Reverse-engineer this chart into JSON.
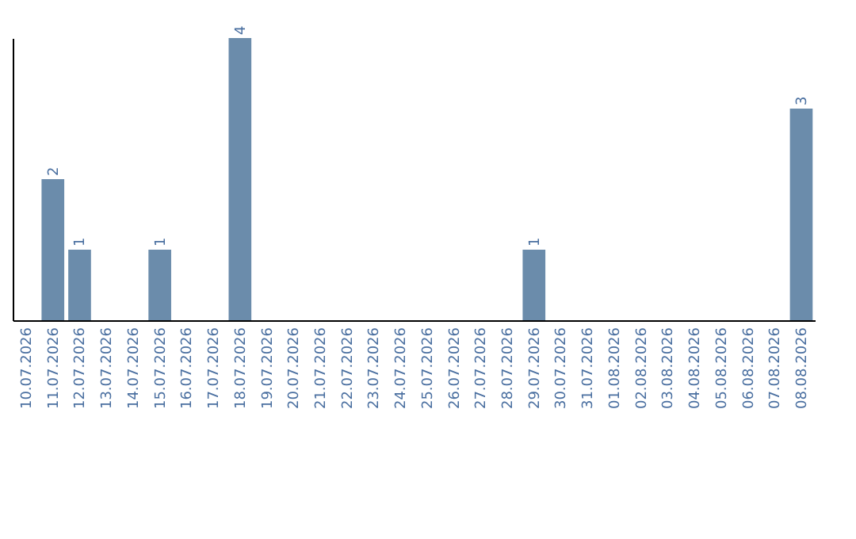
{
  "chart_data": {
    "type": "bar",
    "categories": [
      "10.07.2026",
      "11.07.2026",
      "12.07.2026",
      "13.07.2026",
      "14.07.2026",
      "15.07.2026",
      "16.07.2026",
      "17.07.2026",
      "18.07.2026",
      "19.07.2026",
      "20.07.2026",
      "21.07.2026",
      "22.07.2026",
      "23.07.2026",
      "24.07.2026",
      "25.07.2026",
      "26.07.2026",
      "27.07.2026",
      "28.07.2026",
      "29.07.2026",
      "30.07.2026",
      "31.07.2026",
      "01.08.2026",
      "02.08.2026",
      "03.08.2026",
      "04.08.2026",
      "05.08.2026",
      "06.08.2026",
      "07.08.2026",
      "08.08.2026"
    ],
    "values": [
      0,
      2,
      1,
      0,
      0,
      1,
      0,
      0,
      4,
      0,
      0,
      0,
      0,
      0,
      0,
      0,
      0,
      0,
      0,
      1,
      0,
      0,
      0,
      0,
      0,
      0,
      0,
      0,
      0,
      3
    ],
    "value_labels": [
      null,
      "2",
      "1",
      null,
      null,
      "1",
      null,
      null,
      "4",
      null,
      null,
      null,
      null,
      null,
      null,
      null,
      null,
      null,
      null,
      "1",
      null,
      null,
      null,
      null,
      null,
      null,
      null,
      null,
      null,
      "3"
    ],
    "color": "#6b8cab"
  }
}
